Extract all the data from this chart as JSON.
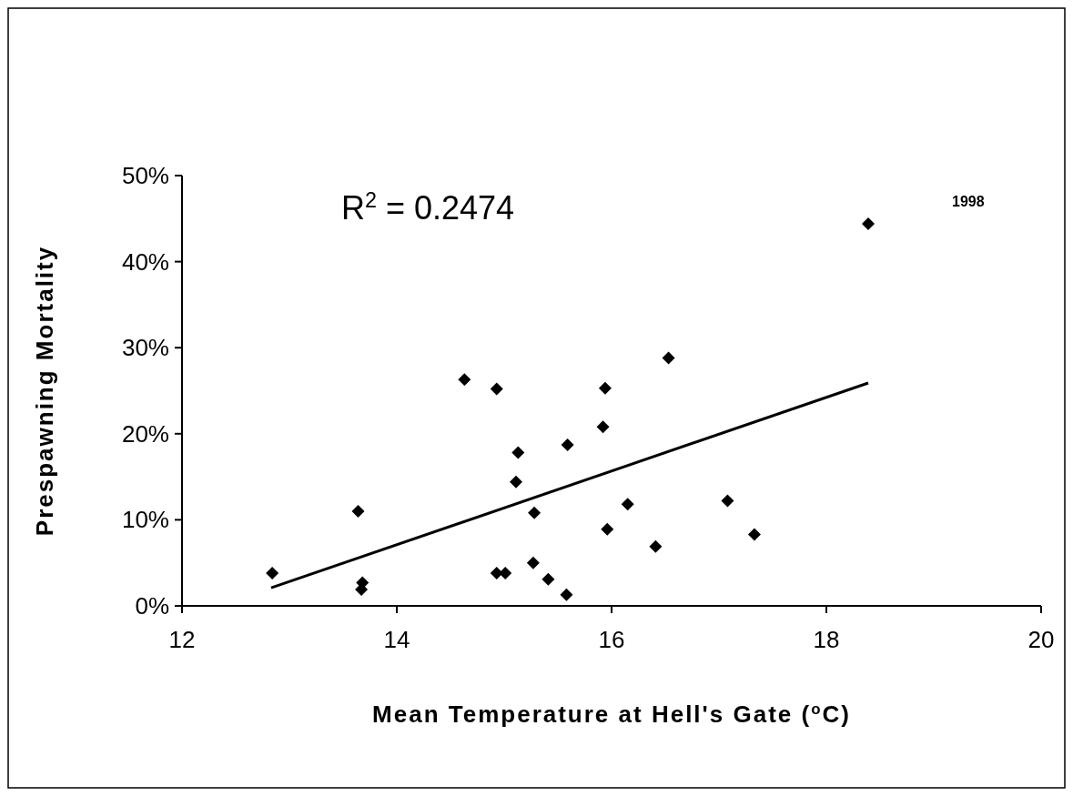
{
  "chart_data": {
    "type": "scatter",
    "xlabel": "Mean Temperature at Hell's Gate ($^{o}$C)",
    "ylabel": "Prespawning Mortality",
    "xlim": [
      12,
      20
    ],
    "xticks": [
      12,
      14,
      16,
      18,
      20
    ],
    "ylim": [
      0,
      50
    ],
    "yticks": [
      {
        "value": 0,
        "label": "0%"
      },
      {
        "value": 10,
        "label": "10%"
      },
      {
        "value": 20,
        "label": "20%"
      },
      {
        "value": 30,
        "label": "30%"
      },
      {
        "value": 40,
        "label": "40%"
      },
      {
        "value": 50,
        "label": "50%"
      }
    ],
    "grid": false,
    "marker": "diamond",
    "annotations": [
      "R$^{2}$ = 0.2474",
      "1998"
    ],
    "series": [
      {
        "color": "#000000",
        "x": [
          12.84,
          13.64,
          13.68,
          13.67,
          14.63,
          14.93,
          14.93,
          15.01,
          15.13,
          15.11,
          15.28,
          15.27,
          15.41,
          15.58,
          15.59,
          15.94,
          15.92,
          15.96,
          16.15,
          16.53,
          16.41,
          17.08,
          17.33,
          18.39
        ],
        "values": [
          3.8,
          11.0,
          2.7,
          1.9,
          26.3,
          25.2,
          3.8,
          3.8,
          17.8,
          14.4,
          10.8,
          5.0,
          3.1,
          1.3,
          18.7,
          25.3,
          20.8,
          8.9,
          11.8,
          28.8,
          6.9,
          12.2,
          8.3,
          44.4
        ]
      },
      {
        "type": "line",
        "color": "#000000",
        "x": [
          12.83,
          18.39
        ],
        "values": [
          2.1,
          25.9
        ],
        "marker": "none",
        "line_style": "solid"
      }
    ]
  }
}
